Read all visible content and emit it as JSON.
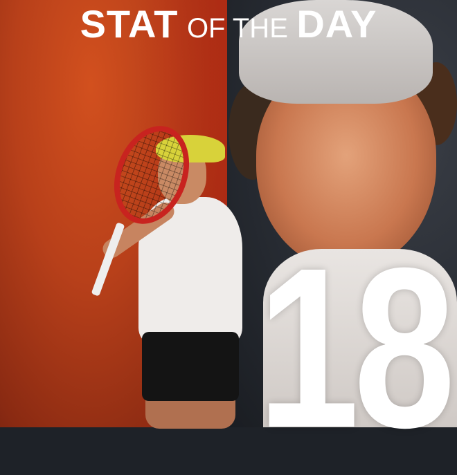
{
  "title": {
    "word1": "STAT",
    "middle": "OF THE",
    "word2": "DAY"
  },
  "stat_value": "18",
  "colors": {
    "left_background": "#b8401a",
    "right_background": "#262a31",
    "text": "#ffffff",
    "cap": "#d8d23a"
  }
}
